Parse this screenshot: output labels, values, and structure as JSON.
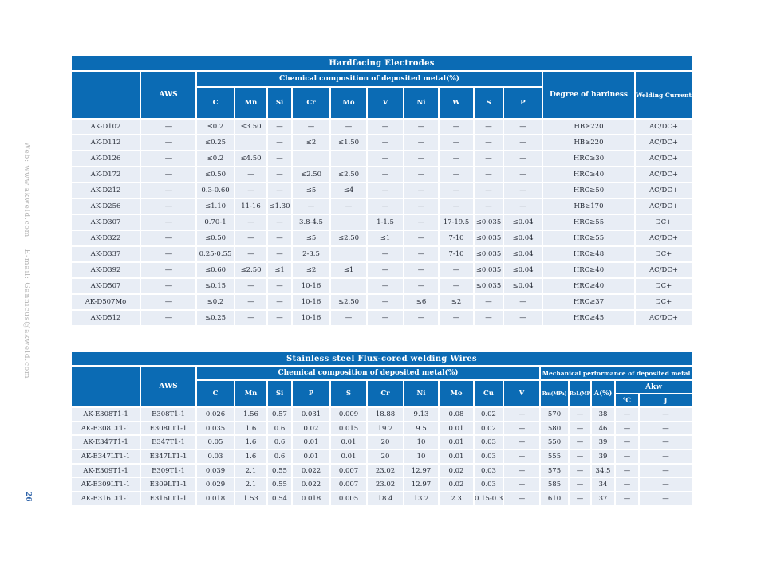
{
  "sidebar": {
    "contact": "Web: www.akweld.com    E-mail: Gannicus@akweld.com",
    "page_number": "26"
  },
  "table1": {
    "title": "Hardfacing  Electrodes",
    "headers": {
      "corner": "",
      "aws": "AWS",
      "chem_span": "Chemical  composition of deposited metal(%)",
      "elements": [
        "C",
        "Mn",
        "Si",
        "Cr",
        "Mo",
        "V",
        "Ni",
        "W",
        "S",
        "P"
      ],
      "hardness": "Degree of hardness",
      "current": "Welding Current"
    },
    "rows": [
      [
        "AK-D102",
        "—",
        "≤0.2",
        "≤3.50",
        "—",
        "—",
        "—",
        "—",
        "—",
        "—",
        "—",
        "—",
        "HB≥220",
        "AC/DC+"
      ],
      [
        "AK-D112",
        "—",
        "≤0.25",
        "",
        "—",
        "≤2",
        "≤1.50",
        "—",
        "—",
        "—",
        "—",
        "—",
        "HB≥220",
        "AC/DC+"
      ],
      [
        "AK-D126",
        "—",
        "≤0.2",
        "≤4.50",
        "—",
        "",
        "",
        "—",
        "—",
        "—",
        "—",
        "—",
        "HRC≥30",
        "AC/DC+"
      ],
      [
        "AK-D172",
        "—",
        "≤0.50",
        "—",
        "—",
        "≤2.50",
        "≤2.50",
        "—",
        "—",
        "—",
        "—",
        "—",
        "HRC≥40",
        "AC/DC+"
      ],
      [
        "AK-D212",
        "—",
        "0.3-0.60",
        "—",
        "—",
        "≤5",
        "≤4",
        "—",
        "—",
        "—",
        "—",
        "—",
        "HRC≥50",
        "AC/DC+"
      ],
      [
        "AK-D256",
        "—",
        "≤1.10",
        "11-16",
        "≤1.30",
        "—",
        "—",
        "—",
        "—",
        "—",
        "—",
        "—",
        "HB≥170",
        "AC/DC+"
      ],
      [
        "AK-D307",
        "—",
        "0.70-1",
        "—",
        "—",
        "3.8-4.5",
        "",
        "1-1.5",
        "—",
        "17-19.5",
        "≤0.035",
        "≤0.04",
        "HRC≥55",
        "DC+"
      ],
      [
        "AK-D322",
        "—",
        "≤0.50",
        "—",
        "—",
        "≤5",
        "≤2.50",
        "≤1",
        "—",
        "7-10",
        "≤0.035",
        "≤0.04",
        "HRC≥55",
        "AC/DC+"
      ],
      [
        "AK-D337",
        "—",
        "0.25-0.55",
        "—",
        "—",
        "2-3.5",
        "",
        "—",
        "—",
        "7-10",
        "≤0.035",
        "≤0.04",
        "HRC≥48",
        "DC+"
      ],
      [
        "AK-D392",
        "—",
        "≤0.60",
        "≤2.50",
        "≤1",
        "≤2",
        "≤1",
        "—",
        "—",
        "—",
        "≤0.035",
        "≤0.04",
        "HRC≥40",
        "AC/DC+"
      ],
      [
        "AK-D507",
        "—",
        "≤0.15",
        "—",
        "—",
        "10-16",
        "",
        "—",
        "—",
        "—",
        "≤0.035",
        "≤0.04",
        "HRC≥40",
        "DC+"
      ],
      [
        "AK-D507Mo",
        "—",
        "≤0.2",
        "—",
        "—",
        "10-16",
        "≤2.50",
        "—",
        "≤6",
        "≤2",
        "—",
        "—",
        "HRC≥37",
        "DC+"
      ],
      [
        "AK-D512",
        "—",
        "≤0.25",
        "—",
        "—",
        "10-16",
        "—",
        "—",
        "—",
        "—",
        "—",
        "—",
        "HRC≥45",
        "AC/DC+"
      ]
    ]
  },
  "table2": {
    "title": "Stainless steel Flux-cored welding Wires",
    "headers": {
      "corner": "",
      "aws": "AWS",
      "chem_span": "Chemical  composition of deposited metal(%)",
      "mech_span": "Mechanical performance of deposited metal",
      "elements": [
        "C",
        "Mn",
        "Si",
        "P",
        "S",
        "Cr",
        "Ni",
        "Mo",
        "Cu",
        "V"
      ],
      "rm": "Rm(MPa)",
      "rel": "ReL(MPa)",
      "a": "A(%)",
      "akw": "Akw",
      "celsius": "℃",
      "joule": "J"
    },
    "rows": [
      [
        "AK-E308T1-1",
        "E308T1-1",
        "0.026",
        "1.56",
        "0.57",
        "0.031",
        "0.009",
        "18.88",
        "9.13",
        "0.08",
        "0.02",
        "—",
        "570",
        "—",
        "38",
        "—",
        "—"
      ],
      [
        "AK-E308LT1-1",
        "E308LT1-1",
        "0.035",
        "1.6",
        "0.6",
        "0.02",
        "0.015",
        "19.2",
        "9.5",
        "0.01",
        "0.02",
        "—",
        "580",
        "—",
        "46",
        "—",
        "—"
      ],
      [
        "AK-E347T1-1",
        "E347T1-1",
        "0.05",
        "1.6",
        "0.6",
        "0.01",
        "0.01",
        "20",
        "10",
        "0.01",
        "0.03",
        "—",
        "550",
        "—",
        "39",
        "—",
        "—"
      ],
      [
        "AK-E347LT1-1",
        "E347LT1-1",
        "0.03",
        "1.6",
        "0.6",
        "0.01",
        "0.01",
        "20",
        "10",
        "0.01",
        "0.03",
        "—",
        "555",
        "—",
        "39",
        "—",
        "—"
      ],
      [
        "AK-E309T1-1",
        "E309T1-1",
        "0.039",
        "2.1",
        "0.55",
        "0.022",
        "0.007",
        "23.02",
        "12.97",
        "0.02",
        "0.03",
        "—",
        "575",
        "—",
        "34.5",
        "—",
        "—"
      ],
      [
        "AK-E309LT1-1",
        "E309LT1-1",
        "0.029",
        "2.1",
        "0.55",
        "0.022",
        "0.007",
        "23.02",
        "12.97",
        "0.02",
        "0.03",
        "—",
        "585",
        "—",
        "34",
        "—",
        "—"
      ],
      [
        "AK-E316LT1-1",
        "E316LT1-1",
        "0.018",
        "1.53",
        "0.54",
        "0.018",
        "0.005",
        "18.4",
        "13.2",
        "2.3",
        "0.15-0.3",
        "—",
        "610",
        "—",
        "37",
        "—",
        "—"
      ]
    ]
  }
}
